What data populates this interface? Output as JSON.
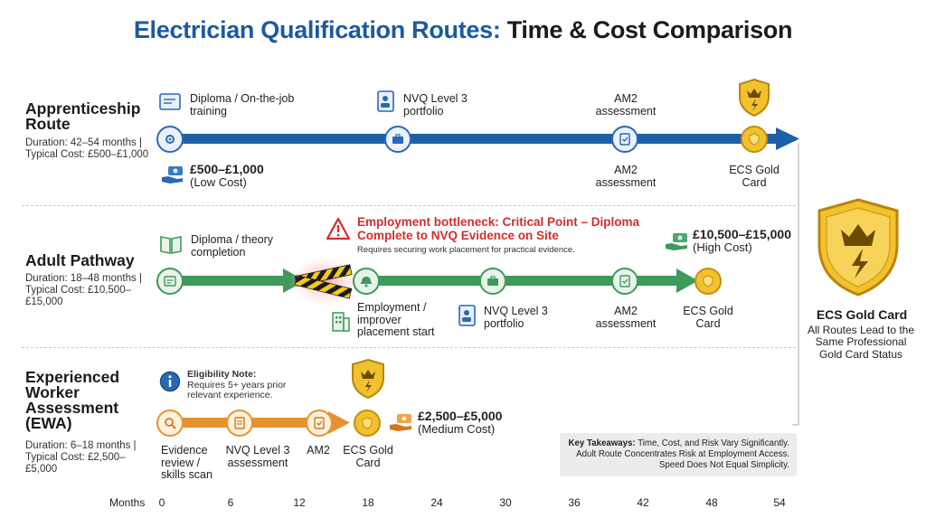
{
  "title": {
    "part1": "Electrician Qualification Routes:",
    "part2": "Time & Cost Comparison"
  },
  "routes": {
    "apprenticeship": {
      "name": "Apprenticeship Route",
      "duration": "Duration: 42–54 months |",
      "cost": "Typical Cost: £500–£1,000",
      "accent": "#1f5fa8",
      "milestones": {
        "m1": "Diploma / On-the-job training",
        "m2": "NVQ Level 3 portfolio",
        "m3_top": "AM2 assessment",
        "m3_bottom": "AM2 assessment",
        "m4": "ECS Gold Card"
      },
      "cost_badge": {
        "amount": "£500–£1,000",
        "level": "(Low Cost)"
      }
    },
    "adult": {
      "name": "Adult Pathway",
      "duration": "Duration: 18–48 months |",
      "cost": "Typical Cost: £10,500–£15,000",
      "accent": "#3e9a5a",
      "milestones": {
        "m1": "Diploma / theory completion",
        "m2": "Employment / improver placement start",
        "m3": "NVQ Level 3 portfolio",
        "m4": "AM2 assessment",
        "m5": "ECS Gold Card"
      },
      "bottleneck": {
        "title": "Employment bottleneck: Critical Point – Diploma Complete to NVQ Evidence on Site",
        "sub": "Requires securing work placement for practical evidence."
      },
      "cost_badge": {
        "amount": "£10,500–£15,000",
        "level": "(High Cost)"
      }
    },
    "ewa": {
      "name": "Experienced Worker Assessment (EWA)",
      "duration": "Duration: 6–18 months |",
      "cost": "Typical Cost: £2,500–£5,000",
      "accent": "#e6922e",
      "eligibility": {
        "label": "Eligibility Note:",
        "text": "Requires 5+ years prior relevant experience."
      },
      "milestones": {
        "m1": "Evidence review / skills scan",
        "m2": "NVQ Level 3 assessment",
        "m3": "AM2",
        "m4": "ECS Gold Card"
      },
      "cost_badge": {
        "amount": "£2,500–£5,000",
        "level": "(Medium Cost)"
      }
    }
  },
  "summary": {
    "title": "ECS Gold Card",
    "text": "All Routes Lead to the Same Professional Gold Card Status"
  },
  "takeaways": {
    "label": "Key Takeaways:",
    "text": "Time, Cost, and Risk Vary Significantly. Adult Route Concentrates Risk at Employment Access. Speed Does Not Equal Simplicity."
  },
  "axis": {
    "label": "Months",
    "ticks": [
      "0",
      "6",
      "12",
      "18",
      "24",
      "30",
      "36",
      "42",
      "48",
      "54"
    ]
  }
}
